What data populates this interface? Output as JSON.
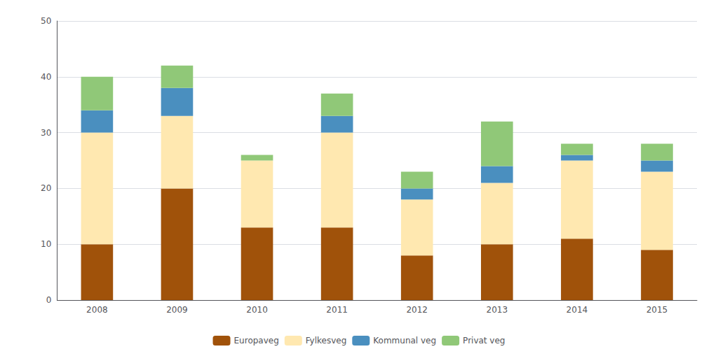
{
  "chart_data": {
    "type": "bar",
    "stacked": true,
    "categories": [
      "2008",
      "2009",
      "2010",
      "2011",
      "2012",
      "2013",
      "2014",
      "2015"
    ],
    "series": [
      {
        "name": "Europaveg",
        "color": "#A0520A",
        "values": [
          10,
          20,
          13,
          13,
          8,
          10,
          11,
          9
        ]
      },
      {
        "name": "Fylkesveg",
        "color": "#FFE8B0",
        "values": [
          20,
          13,
          12,
          17,
          10,
          11,
          14,
          14
        ]
      },
      {
        "name": "Kommunal veg",
        "color": "#4A8FBF",
        "values": [
          4,
          5,
          0,
          3,
          2,
          3,
          1,
          2
        ]
      },
      {
        "name": "Privat veg",
        "color": "#90C878",
        "values": [
          6,
          4,
          1,
          4,
          3,
          8,
          2,
          3
        ]
      }
    ],
    "ylim": [
      0,
      50
    ],
    "yticks": [
      0,
      10,
      20,
      30,
      40,
      50
    ],
    "grid": true,
    "legend": "bottom"
  }
}
